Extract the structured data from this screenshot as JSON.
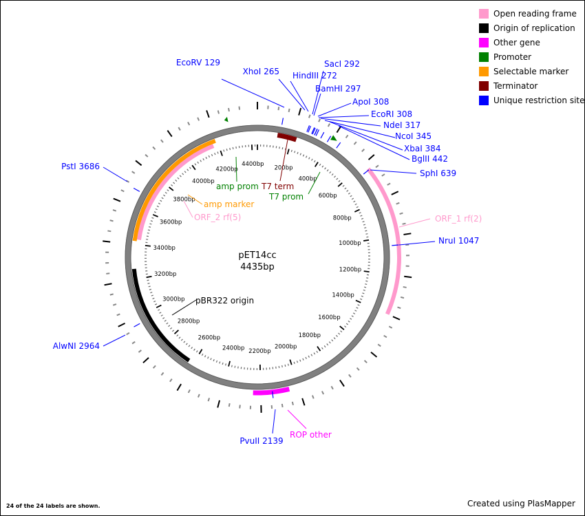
{
  "map": {
    "name": "pET14cc",
    "length_label": "4435bp",
    "total_bp": 4435
  },
  "colors": {
    "orf": "#ff99cc",
    "origin": "#000000",
    "other": "#ff00ff",
    "promoter": "#008000",
    "marker": "#ff9900",
    "terminator": "#800000",
    "restriction": "#0000ff",
    "backbone": "#808080"
  },
  "legend": [
    {
      "label": "Open reading frame",
      "color": "#ff99cc"
    },
    {
      "label": "Origin of replication",
      "color": "#000000"
    },
    {
      "label": "Other gene",
      "color": "#ff00ff"
    },
    {
      "label": "Promoter",
      "color": "#008000"
    },
    {
      "label": "Selectable marker",
      "color": "#ff9900"
    },
    {
      "label": "Terminator",
      "color": "#800000"
    },
    {
      "label": "Unique restriction site",
      "color": "#0000ff"
    }
  ],
  "features": [
    {
      "label": "ORF_1 rf(2)",
      "type": "orf",
      "start": 633,
      "end": 1400,
      "ring": "outer"
    },
    {
      "label": "ORF_2 rf(5)",
      "type": "orf",
      "start": 3430,
      "end": 4170,
      "ring": "inner"
    },
    {
      "label": "amp marker",
      "type": "marker",
      "start": 3420,
      "end": 4190,
      "ring": "outer"
    },
    {
      "label": "pBR322 origin",
      "type": "origin",
      "start": 2630,
      "end": 3260,
      "ring": "outer"
    },
    {
      "label": "ROP other",
      "type": "other",
      "start": 2050,
      "end": 2240,
      "ring": "outer"
    },
    {
      "label": "T7 term",
      "type": "terminator",
      "start": 115,
      "end": 225,
      "ring": "outer"
    },
    {
      "label": "T7 prom",
      "type": "promoter",
      "start": 392,
      "end": 405,
      "ring": "outer"
    },
    {
      "label": "amp prom",
      "type": "promoter",
      "start": 4285,
      "end": 4300,
      "ring": "outer"
    }
  ],
  "sites": [
    {
      "label": "EcoRV 129",
      "pos": 129
    },
    {
      "label": "XhoI 265",
      "pos": 265
    },
    {
      "label": "HindIII 272",
      "pos": 272
    },
    {
      "label": "SacI 292",
      "pos": 292
    },
    {
      "label": "BamHI 297",
      "pos": 297
    },
    {
      "label": "ApoI 308",
      "pos": 308
    },
    {
      "label": "EcoRI 308",
      "pos": 308
    },
    {
      "label": "NdeI 317",
      "pos": 317
    },
    {
      "label": "NcoI 345",
      "pos": 345
    },
    {
      "label": "XbaI 384",
      "pos": 384
    },
    {
      "label": "BglII 442",
      "pos": 442
    },
    {
      "label": "SphI 639",
      "pos": 639
    },
    {
      "label": "NruI 1047",
      "pos": 1047
    },
    {
      "label": "PvuII 2139",
      "pos": 2139
    },
    {
      "label": "AlwNI 2964",
      "pos": 2964
    },
    {
      "label": "PstI 3686",
      "pos": 3686
    }
  ],
  "scale_labels": [
    "200bp",
    "400bp",
    "600bp",
    "800bp",
    "1000bp",
    "1200bp",
    "1400bp",
    "1600bp",
    "1800bp",
    "2000bp",
    "2200bp",
    "2400bp",
    "2600bp",
    "2800bp",
    "3000bp",
    "3200bp",
    "3400bp",
    "3600bp",
    "3800bp",
    "4000bp",
    "4200bp",
    "4400bp"
  ],
  "footer": {
    "labels_shown": "24 of the 24 labels are shown.",
    "credit": "Created using PlasMapper"
  }
}
